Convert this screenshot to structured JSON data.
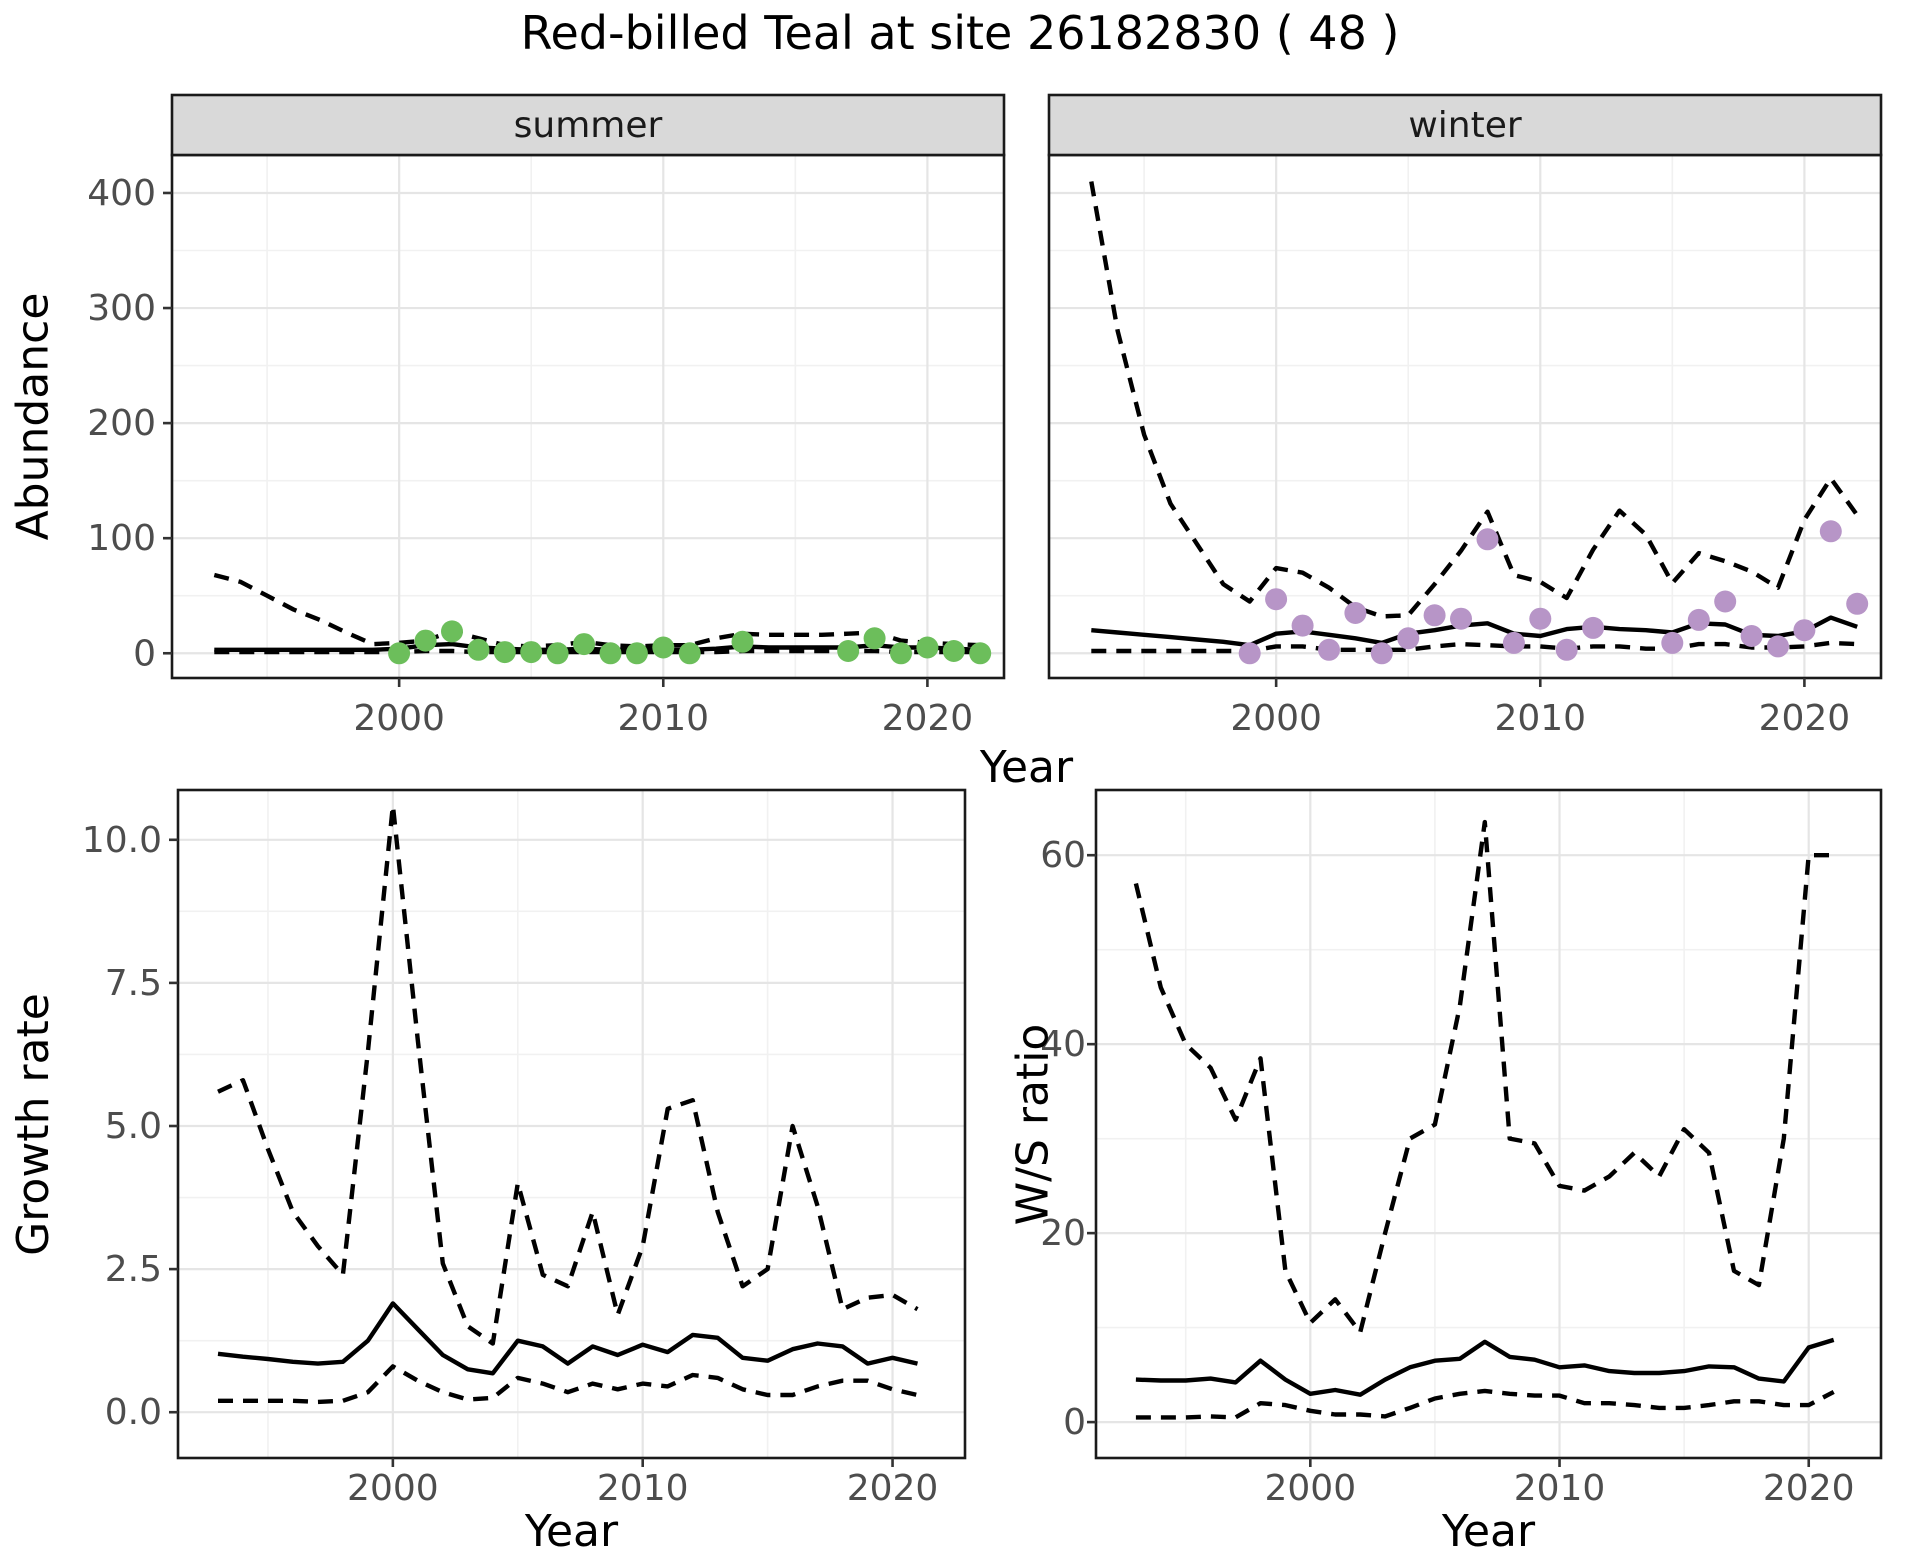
{
  "figure": {
    "title": "Red-billed Teal at site 26182830 ( 48 )"
  },
  "axes": {
    "year_title": "Year",
    "abundance_title": "Abundance"
  },
  "colors": {
    "summer_point": "#6CBE5B",
    "winter_point": "#B795C7",
    "line": "#000000",
    "grid_major": "#E5E5E5",
    "grid_minor": "#F1F1F1",
    "strip_bg": "#D9D9D9",
    "panel_border": "#1A1A1A",
    "tick_label": "#4D4D4D"
  },
  "chart_data": [
    {
      "id": "abundance-summer",
      "type": "line",
      "strip": "summer",
      "xlabel": "Year",
      "ylabel": "Abundance",
      "xlim": [
        1991.4,
        2022.9
      ],
      "ylim": [
        -21.5,
        433
      ],
      "xticks": [
        2000,
        2010,
        2020
      ],
      "xtick_labels": [
        "2000",
        "2010",
        "2020"
      ],
      "yticks": [
        0,
        100,
        200,
        300,
        400
      ],
      "ytick_labels": [
        "0",
        "100",
        "200",
        "300",
        "400"
      ],
      "show_y_labels": true,
      "grid": true,
      "x": [
        1993,
        1994,
        1995,
        1996,
        1997,
        1998,
        1999,
        2000,
        2001,
        2002,
        2003,
        2004,
        2005,
        2006,
        2007,
        2008,
        2009,
        2010,
        2011,
        2012,
        2013,
        2014,
        2015,
        2016,
        2017,
        2018,
        2019,
        2020,
        2021,
        2022
      ],
      "series": [
        {
          "name": "lower_ci",
          "style": "dashed",
          "values": [
            1,
            1,
            1,
            1,
            1,
            1,
            1,
            1,
            2,
            2,
            1,
            1,
            1,
            1,
            1,
            1,
            1,
            1,
            1,
            1,
            2,
            2,
            2,
            2,
            2,
            2,
            1,
            1,
            1,
            1
          ]
        },
        {
          "name": "upper_ci",
          "style": "dashed",
          "values": [
            68,
            62,
            50,
            38,
            29,
            18,
            8,
            9,
            11,
            19,
            13,
            7,
            6,
            7,
            10,
            7,
            6,
            7,
            7,
            13,
            17,
            16,
            16,
            16,
            17,
            18,
            11,
            9,
            8,
            7
          ]
        },
        {
          "name": "median",
          "style": "solid",
          "values": [
            3,
            3,
            3,
            3,
            3,
            3,
            3,
            4,
            7,
            8,
            5,
            4,
            3,
            3,
            4,
            3,
            3,
            3,
            3,
            4,
            6,
            5,
            5,
            5,
            5,
            7,
            5,
            5,
            4,
            3
          ]
        }
      ],
      "points": {
        "name": "observed-summer-counts",
        "x": [
          2000,
          2001,
          2002,
          2003,
          2004,
          2005,
          2006,
          2007,
          2008,
          2009,
          2010,
          2011,
          2013,
          2017,
          2018,
          2019,
          2020,
          2021,
          2022
        ],
        "y": [
          0,
          11,
          19,
          3,
          1,
          1,
          0,
          8,
          0,
          0,
          5,
          0,
          10,
          2,
          13,
          0,
          5,
          2,
          0
        ],
        "color": "#6CBE5B"
      }
    },
    {
      "id": "abundance-winter",
      "type": "line",
      "strip": "winter",
      "xlabel": "Year",
      "ylabel": "Abundance",
      "xlim": [
        1991.4,
        2022.9
      ],
      "ylim": [
        -21.5,
        433
      ],
      "xticks": [
        2000,
        2010,
        2020
      ],
      "xtick_labels": [
        "2000",
        "2010",
        "2020"
      ],
      "yticks": [
        0,
        100,
        200,
        300,
        400
      ],
      "ytick_labels": [
        "0",
        "100",
        "200",
        "300",
        "400"
      ],
      "show_y_labels": false,
      "grid": true,
      "x": [
        1993,
        1994,
        1995,
        1996,
        1997,
        1998,
        1999,
        2000,
        2001,
        2002,
        2003,
        2004,
        2005,
        2006,
        2007,
        2008,
        2009,
        2010,
        2011,
        2012,
        2013,
        2014,
        2015,
        2016,
        2017,
        2018,
        2019,
        2020,
        2021,
        2022
      ],
      "series": [
        {
          "name": "lower_ci",
          "style": "dashed",
          "values": [
            2,
            2,
            2,
            2,
            2,
            2,
            2,
            6,
            6,
            3,
            3,
            3,
            3,
            6,
            8,
            7,
            6,
            6,
            4,
            6,
            6,
            4,
            4,
            8,
            8,
            5,
            5,
            6,
            9,
            8
          ]
        },
        {
          "name": "upper_ci",
          "style": "dashed",
          "values": [
            410,
            280,
            190,
            130,
            95,
            60,
            45,
            74,
            70,
            57,
            40,
            32,
            33,
            60,
            89,
            123,
            68,
            62,
            48,
            90,
            124,
            103,
            61,
            87,
            80,
            71,
            57,
            116,
            152,
            120
          ]
        },
        {
          "name": "median",
          "style": "solid",
          "values": [
            20,
            18,
            16,
            14,
            12,
            10,
            7,
            17,
            19,
            16,
            13,
            9,
            17,
            20,
            24,
            26,
            17,
            15,
            21,
            23,
            21,
            20,
            18,
            26,
            25,
            16,
            15,
            19,
            31,
            23
          ]
        }
      ],
      "points": {
        "name": "observed-winter-counts",
        "x": [
          1999,
          2000,
          2001,
          2002,
          2003,
          2004,
          2005,
          2006,
          2007,
          2008,
          2009,
          2010,
          2011,
          2012,
          2015,
          2016,
          2017,
          2018,
          2019,
          2020,
          2021,
          2022
        ],
        "y": [
          0,
          47,
          24,
          3,
          35,
          0,
          13,
          33,
          30,
          99,
          9,
          30,
          3,
          22,
          9,
          29,
          45,
          15,
          6,
          20,
          106,
          43
        ],
        "color": "#B795C7"
      }
    },
    {
      "id": "growth-rate",
      "type": "line",
      "strip": null,
      "xlabel": "Year",
      "ylabel": "Growth rate",
      "xlim": [
        1991.4,
        2022.9
      ],
      "ylim": [
        -0.8,
        10.87
      ],
      "xticks": [
        2000,
        2010,
        2020
      ],
      "xtick_labels": [
        "2000",
        "2010",
        "2020"
      ],
      "yticks": [
        0,
        2.5,
        5,
        7.5,
        10
      ],
      "ytick_labels": [
        "0.0",
        "2.5",
        "5.0",
        "7.5",
        "10.0"
      ],
      "show_y_labels": true,
      "grid": true,
      "x": [
        1993,
        1994,
        1995,
        1996,
        1997,
        1998,
        1999,
        2000,
        2001,
        2002,
        2003,
        2004,
        2005,
        2006,
        2007,
        2008,
        2009,
        2010,
        2011,
        2012,
        2013,
        2014,
        2015,
        2016,
        2017,
        2018,
        2019,
        2020,
        2021
      ],
      "series": [
        {
          "name": "lower_ci",
          "style": "dashed",
          "values": [
            0.2,
            0.2,
            0.2,
            0.2,
            0.18,
            0.2,
            0.35,
            0.8,
            0.55,
            0.35,
            0.22,
            0.25,
            0.6,
            0.5,
            0.35,
            0.5,
            0.4,
            0.5,
            0.45,
            0.65,
            0.6,
            0.4,
            0.3,
            0.3,
            0.45,
            0.55,
            0.55,
            0.4,
            0.3
          ]
        },
        {
          "name": "upper_ci",
          "style": "dashed",
          "values": [
            5.6,
            5.8,
            4.6,
            3.5,
            2.9,
            2.4,
            6.3,
            10.6,
            6.5,
            2.6,
            1.5,
            1.2,
            4.0,
            2.4,
            2.2,
            3.5,
            1.7,
            2.9,
            5.3,
            5.45,
            3.5,
            2.2,
            2.5,
            5.0,
            3.6,
            1.8,
            2.0,
            2.05,
            1.8
          ]
        },
        {
          "name": "median",
          "style": "solid",
          "values": [
            1.02,
            0.97,
            0.93,
            0.88,
            0.85,
            0.88,
            1.25,
            1.9,
            1.45,
            1.0,
            0.75,
            0.68,
            1.25,
            1.15,
            0.85,
            1.15,
            1.0,
            1.18,
            1.05,
            1.35,
            1.3,
            0.95,
            0.9,
            1.1,
            1.2,
            1.15,
            0.85,
            0.95,
            0.85
          ]
        }
      ],
      "points": null
    },
    {
      "id": "ws-ratio",
      "type": "line",
      "strip": null,
      "xlabel": "Year",
      "ylabel": "W/S ratio",
      "xlim": [
        1991.4,
        2022.9
      ],
      "ylim": [
        -3.8,
        66.9
      ],
      "xticks": [
        2000,
        2010,
        2020
      ],
      "xtick_labels": [
        "2000",
        "2010",
        "2020"
      ],
      "yticks": [
        0,
        20,
        40,
        60
      ],
      "ytick_labels": [
        "0",
        "20",
        "40",
        "60"
      ],
      "show_y_labels": true,
      "grid": true,
      "x": [
        1993,
        1994,
        1995,
        1996,
        1997,
        1998,
        1999,
        2000,
        2001,
        2002,
        2003,
        2004,
        2005,
        2006,
        2007,
        2008,
        2009,
        2010,
        2011,
        2012,
        2013,
        2014,
        2015,
        2016,
        2017,
        2018,
        2019,
        2020,
        2021
      ],
      "series": [
        {
          "name": "lower_ci",
          "style": "dashed",
          "values": [
            0.5,
            0.5,
            0.5,
            0.6,
            0.5,
            2.0,
            1.8,
            1.2,
            0.8,
            0.8,
            0.6,
            1.5,
            2.5,
            3.0,
            3.3,
            3.0,
            2.8,
            2.8,
            2.0,
            2.0,
            1.8,
            1.5,
            1.5,
            1.8,
            2.2,
            2.2,
            1.8,
            1.8,
            3.2
          ]
        },
        {
          "name": "upper_ci",
          "style": "dashed",
          "values": [
            57,
            46,
            40,
            37.5,
            32,
            38.5,
            16,
            10.5,
            13,
            9.5,
            20,
            30,
            31.5,
            44,
            63.5,
            30,
            29.5,
            25,
            24.5,
            26,
            28.5,
            26,
            31,
            28.5,
            16,
            14.5,
            30,
            60,
            60
          ]
        },
        {
          "name": "median",
          "style": "solid",
          "values": [
            4.5,
            4.4,
            4.4,
            4.6,
            4.2,
            6.5,
            4.5,
            3.0,
            3.4,
            2.9,
            4.5,
            5.8,
            6.5,
            6.7,
            8.5,
            6.9,
            6.6,
            5.8,
            6.0,
            5.4,
            5.2,
            5.2,
            5.4,
            5.9,
            5.8,
            4.6,
            4.3,
            7.9,
            8.7
          ]
        }
      ],
      "points": null
    }
  ]
}
